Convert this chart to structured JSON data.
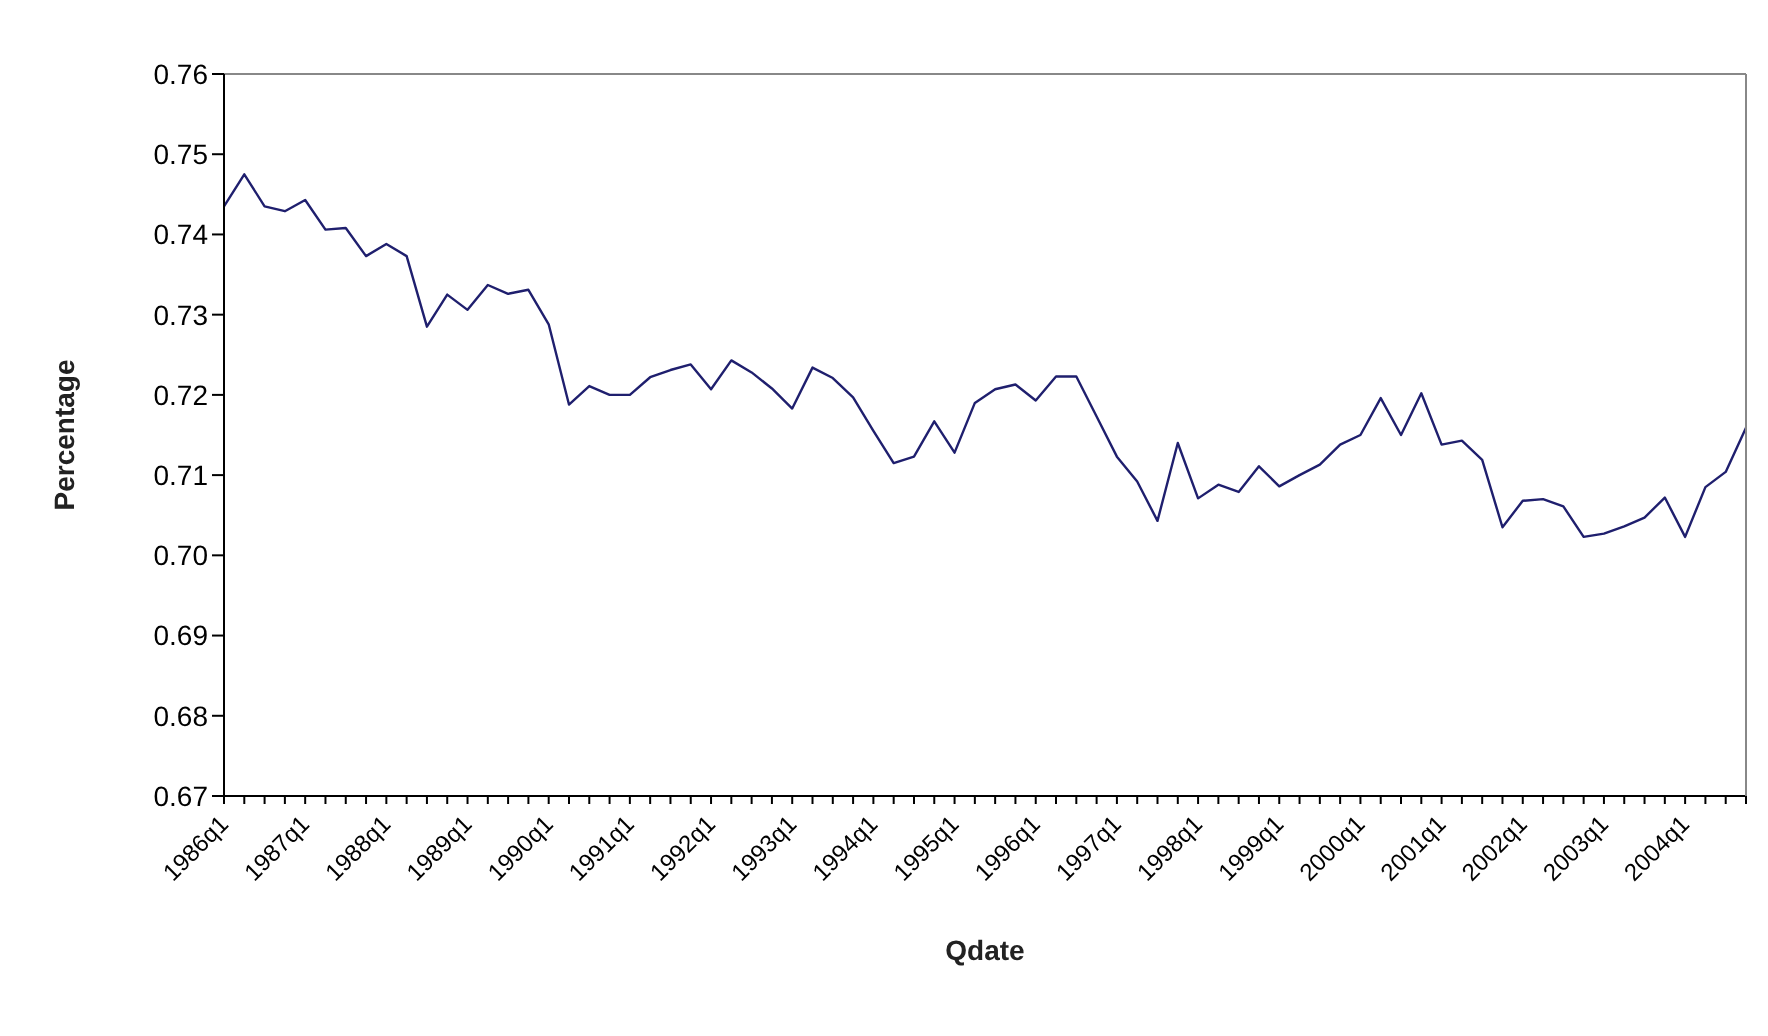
{
  "chart_data": {
    "type": "line",
    "xlabel": "Qdate",
    "ylabel": "Percentage",
    "categories": [
      "1986q1",
      null,
      null,
      null,
      "1987q1",
      null,
      null,
      null,
      "1988q1",
      null,
      null,
      null,
      "1989q1",
      null,
      null,
      null,
      "1990q1",
      null,
      null,
      null,
      "1991q1",
      null,
      null,
      null,
      "1992q1",
      null,
      null,
      null,
      "1993q1",
      null,
      null,
      null,
      "1994q1",
      null,
      null,
      null,
      "1995q1",
      null,
      null,
      null,
      "1996q1",
      null,
      null,
      null,
      "1997q1",
      null,
      null,
      null,
      "1998q1",
      null,
      null,
      null,
      "1999q1",
      null,
      null,
      null,
      "2000q1",
      null,
      null,
      null,
      "2001q1",
      null,
      null,
      null,
      "2002q1",
      null,
      null,
      null,
      "2003q1",
      null,
      null,
      null,
      "2004q1",
      null,
      null,
      null
    ],
    "series": [
      {
        "color": "#1f1f6e",
        "values": [
          0.7435,
          0.7475,
          0.7435,
          0.7429,
          0.7443,
          0.7406,
          0.7408,
          0.7373,
          0.7388,
          0.7373,
          0.7285,
          0.7325,
          0.7306,
          0.7337,
          0.7326,
          0.7331,
          0.7288,
          0.7188,
          0.7211,
          0.72,
          0.72,
          0.7222,
          0.7231,
          0.7238,
          0.7207,
          0.7243,
          0.7228,
          0.7208,
          0.7183,
          0.7234,
          0.7221,
          0.7197,
          0.7155,
          0.7115,
          0.7123,
          0.7167,
          0.7128,
          0.719,
          0.7207,
          0.7213,
          0.7193,
          0.7223,
          0.7223,
          0.7173,
          0.7123,
          0.7092,
          0.7043,
          0.714,
          0.7071,
          0.7088,
          0.7079,
          0.7111,
          0.7086,
          0.71,
          0.7113,
          0.7138,
          0.715,
          0.7196,
          0.715,
          0.7202,
          0.7138,
          0.7143,
          0.7119,
          0.7035,
          0.7068,
          0.707,
          0.7061,
          0.7023,
          0.7027,
          0.7036,
          0.7047,
          0.7072,
          0.7023,
          0.7085,
          0.7104,
          0.7159
        ]
      }
    ],
    "ylim": [
      0.67,
      0.76
    ],
    "yticks": [
      {
        "value": 0.67,
        "label": "0.67"
      },
      {
        "value": 0.68,
        "label": "0.68"
      },
      {
        "value": 0.69,
        "label": "0.69"
      },
      {
        "value": 0.7,
        "label": "0.70"
      },
      {
        "value": 0.71,
        "label": "0.71"
      },
      {
        "value": 0.72,
        "label": "0.72"
      },
      {
        "value": 0.73,
        "label": "0.73"
      },
      {
        "value": 0.74,
        "label": "0.74"
      },
      {
        "value": 0.75,
        "label": "0.75"
      },
      {
        "value": 0.76,
        "label": "0.76"
      }
    ],
    "grid": false,
    "legend": false,
    "marker": "none",
    "line_style": "solid"
  }
}
